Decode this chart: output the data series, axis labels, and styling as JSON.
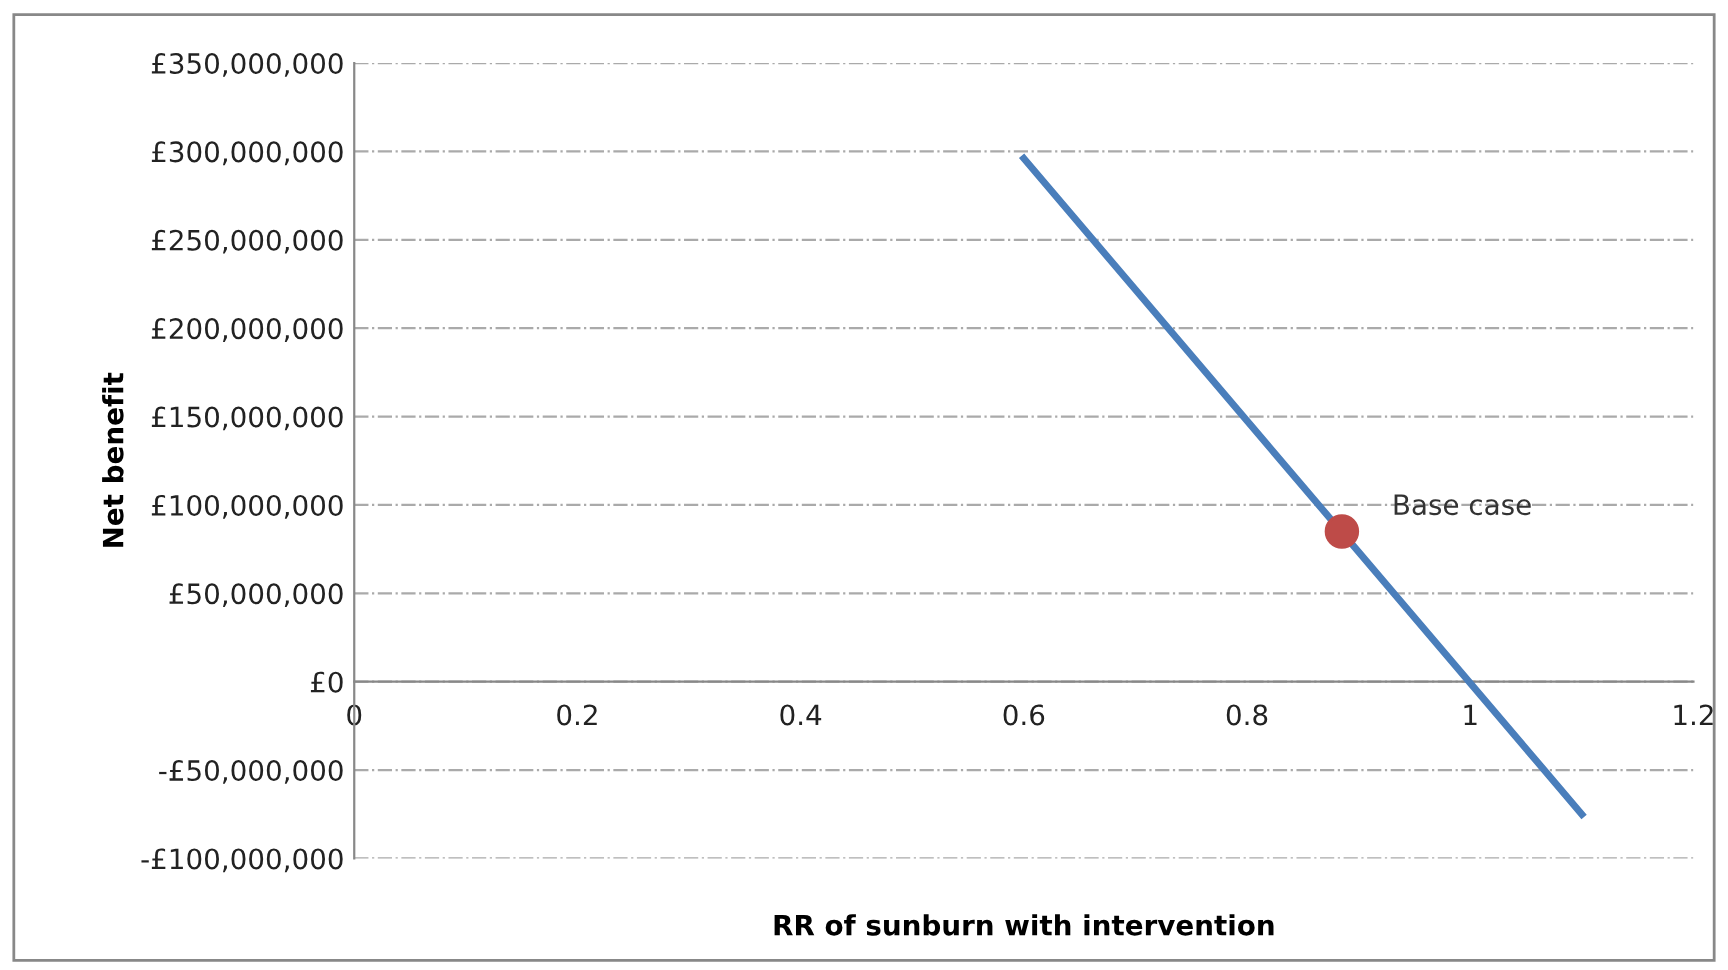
{
  "chart_data": {
    "type": "line",
    "xlabel": "RR of sunburn with intervention",
    "ylabel": "Net benefit",
    "xlim": [
      0,
      1.2
    ],
    "xticks": [
      0,
      0.2,
      0.4,
      0.6,
      0.8,
      1,
      1.2
    ],
    "ylim": [
      -100000000,
      350000000
    ],
    "yticks": [
      {
        "value": -100000000,
        "label": "-£100,000,000"
      },
      {
        "value": -50000000,
        "label": "-£50,000,000"
      },
      {
        "value": 0,
        "label": "£0"
      },
      {
        "value": 50000000,
        "label": "£50,000,000"
      },
      {
        "value": 100000000,
        "label": "£100,000,000"
      },
      {
        "value": 150000000,
        "label": "£150,000,000"
      },
      {
        "value": 200000000,
        "label": "£200,000,000"
      },
      {
        "value": 250000000,
        "label": "£250,000,000"
      },
      {
        "value": 300000000,
        "label": "£300,000,000"
      },
      {
        "value": 350000000,
        "label": "£350,000,000"
      }
    ],
    "grid": "y",
    "legend": false,
    "series": [
      {
        "color": "#4a7ebb",
        "x": [
          0.6,
          1.1
        ],
        "values": [
          296000000,
          -75000000
        ],
        "marker": "none"
      },
      {
        "type": "scatter",
        "color": "#be4b48",
        "x": [
          0.885
        ],
        "values": [
          85000000
        ],
        "marker": "circle"
      }
    ],
    "annotations": [
      {
        "text": "Base case",
        "x": 0.885,
        "y": 85000000
      }
    ]
  }
}
